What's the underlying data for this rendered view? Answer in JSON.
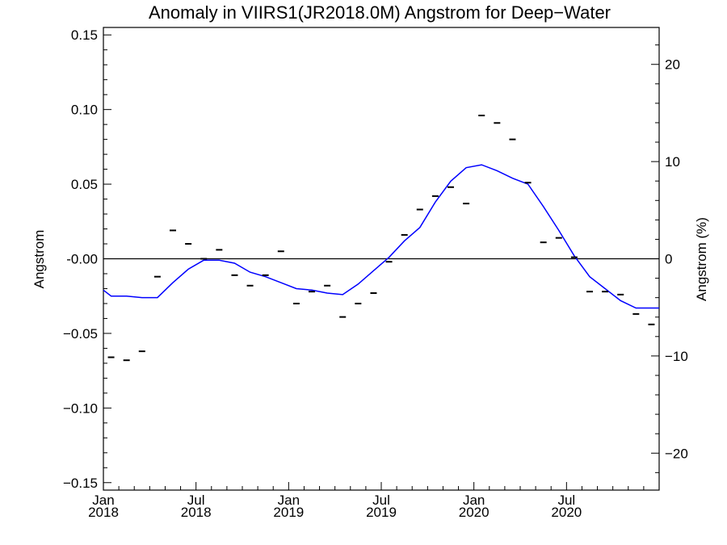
{
  "chart_data": {
    "type": "line",
    "title": "Anomaly in VIIRS1(JR2018.0M) Angstrom for Deep−Water",
    "ylabel": "Angstrom",
    "y2label": "Angstrom (%)",
    "xlabel": "",
    "ylim": [
      -0.155,
      0.155
    ],
    "y2lim": [
      -23.8,
      23.8
    ],
    "xlim": [
      0,
      36
    ],
    "x_units": "months since Jan 2018",
    "yticks": [
      {
        "value": 0.15,
        "label": "0.15"
      },
      {
        "value": 0.1,
        "label": "0.10"
      },
      {
        "value": 0.05,
        "label": "0.05"
      },
      {
        "value": 0.0,
        "label": "-0.00"
      },
      {
        "value": -0.05,
        "label": "−0.05"
      },
      {
        "value": -0.1,
        "label": "−0.10"
      },
      {
        "value": -0.15,
        "label": "−0.15"
      }
    ],
    "y2ticks": [
      {
        "value": 20,
        "label": "20"
      },
      {
        "value": 10,
        "label": "10"
      },
      {
        "value": 0,
        "label": "0"
      },
      {
        "value": -10,
        "label": "−10"
      },
      {
        "value": -20,
        "label": "−20"
      }
    ],
    "xticks": [
      {
        "value": 0,
        "month": "Jan",
        "year": "2018"
      },
      {
        "value": 6,
        "month": "Jul",
        "year": "2018"
      },
      {
        "value": 12,
        "month": "Jan",
        "year": "2019"
      },
      {
        "value": 18,
        "month": "Jul",
        "year": "2019"
      },
      {
        "value": 24,
        "month": "Jan",
        "year": "2020"
      },
      {
        "value": 30,
        "month": "Jul",
        "year": "2020"
      }
    ],
    "zero_line": true,
    "series": [
      {
        "kind": "monthly-markers",
        "color": "#000000",
        "x": [
          0.5,
          1.5,
          2.5,
          3.5,
          4.5,
          5.5,
          6.5,
          7.5,
          8.5,
          9.5,
          10.5,
          11.5,
          12.5,
          13.5,
          14.5,
          15.5,
          16.5,
          17.5,
          18.5,
          19.5,
          20.5,
          21.5,
          22.5,
          23.5,
          24.5,
          25.5,
          26.5,
          27.5,
          28.5,
          29.5,
          30.5,
          31.5,
          32.5,
          33.5,
          34.5,
          35.5
        ],
        "y": [
          -0.066,
          -0.068,
          -0.062,
          -0.012,
          0.019,
          0.01,
          0.0,
          0.006,
          -0.011,
          -0.018,
          -0.011,
          0.005,
          -0.03,
          -0.022,
          -0.018,
          -0.039,
          -0.03,
          -0.023,
          -0.002,
          0.016,
          0.033,
          0.042,
          0.048,
          0.037,
          0.096,
          0.091,
          0.08,
          0.051,
          0.011,
          0.014,
          0.001,
          -0.022,
          -0.022,
          -0.024,
          -0.037,
          -0.044
        ]
      },
      {
        "kind": "smoothed-line",
        "color": "#0000ff",
        "x": [
          -0.2,
          0.5,
          1.5,
          2.5,
          3.5,
          4.5,
          5.5,
          6.5,
          7.5,
          8.5,
          9.5,
          10.5,
          11.5,
          12.5,
          13.5,
          14.5,
          15.5,
          16.5,
          17.5,
          18.5,
          19.5,
          20.5,
          21.5,
          22.5,
          23.5,
          24.5,
          25.5,
          26.5,
          27.5,
          28.5,
          29.5,
          30.5,
          31.5,
          32.5,
          33.5,
          34.5,
          35.5,
          36.0
        ],
        "y": [
          -0.021,
          -0.025,
          -0.025,
          -0.026,
          -0.026,
          -0.016,
          -0.007,
          -0.001,
          -0.001,
          -0.003,
          -0.009,
          -0.012,
          -0.016,
          -0.02,
          -0.021,
          -0.023,
          -0.024,
          -0.017,
          -0.008,
          0.001,
          0.012,
          0.021,
          0.038,
          0.052,
          0.061,
          0.063,
          0.059,
          0.054,
          0.05,
          0.035,
          0.019,
          0.002,
          -0.012,
          -0.02,
          -0.028,
          -0.033,
          -0.033,
          -0.033
        ]
      }
    ]
  }
}
